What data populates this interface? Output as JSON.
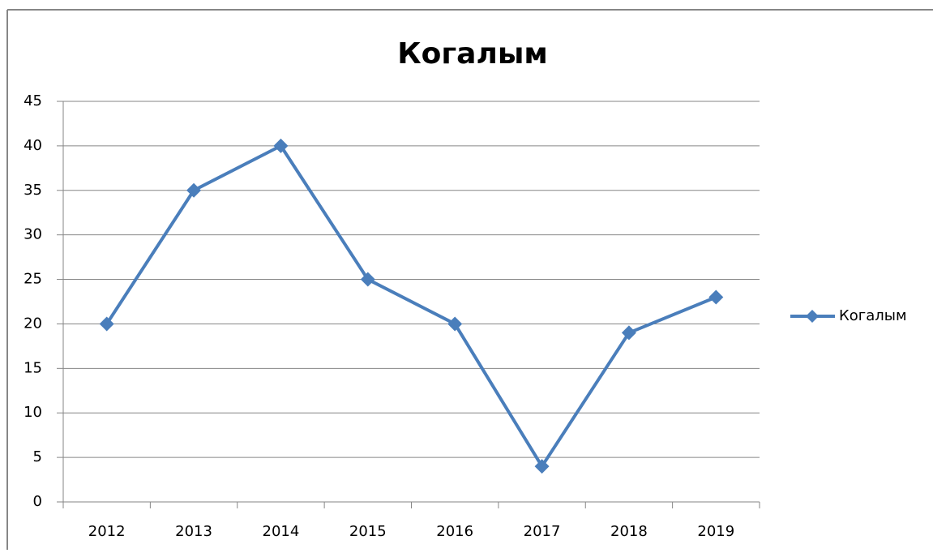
{
  "chart_data": {
    "type": "line",
    "title": "Когалым",
    "categories": [
      "2012",
      "2013",
      "2014",
      "2015",
      "2016",
      "2017",
      "2018",
      "2019"
    ],
    "series": [
      {
        "name": "Когалым",
        "color": "#4a7ebb",
        "values": [
          20,
          35,
          40,
          25,
          20,
          4,
          19,
          23
        ]
      }
    ],
    "ylim": [
      0,
      45
    ],
    "yticks": [
      0,
      5,
      10,
      15,
      20,
      25,
      30,
      35,
      40,
      45
    ],
    "grid": true,
    "legend": "right"
  }
}
